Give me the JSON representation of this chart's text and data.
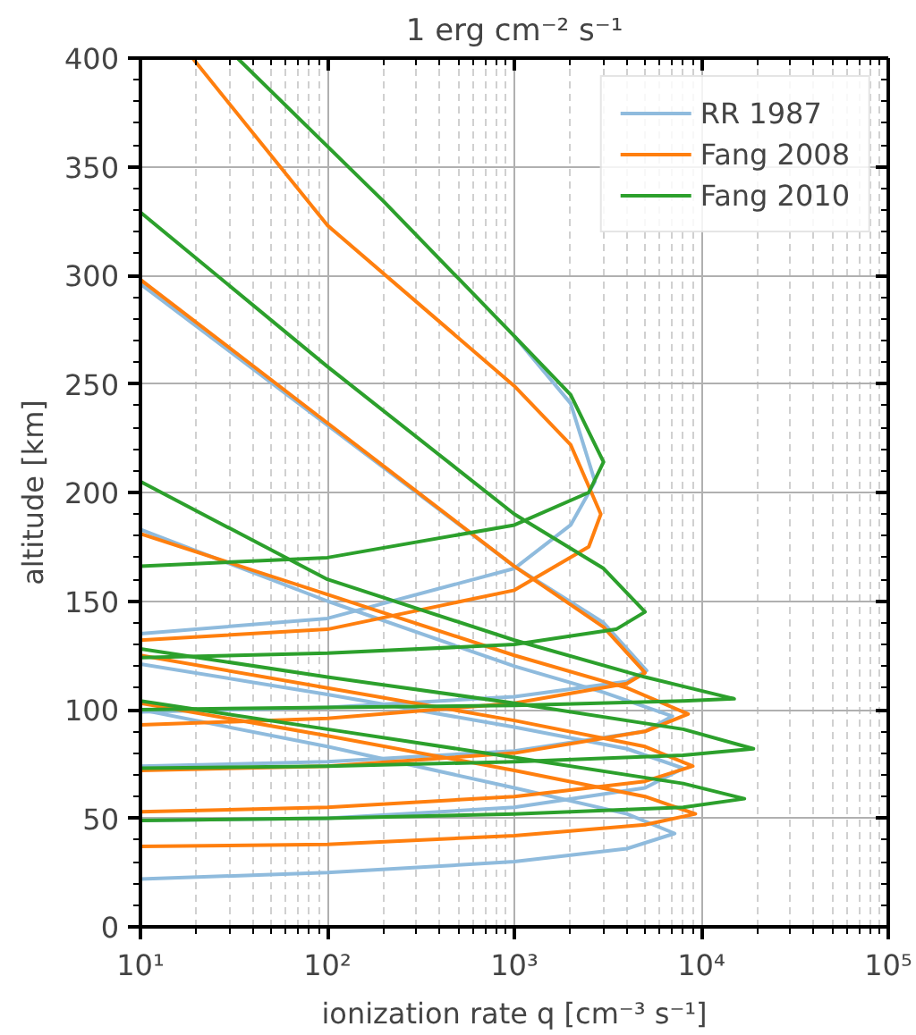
{
  "chart_data": {
    "type": "line",
    "title": "1 erg cm⁻² s⁻¹",
    "xlabel": "ionization rate q [cm⁻³ s⁻¹]",
    "ylabel": "altitude [km]",
    "log": "x",
    "grid": true,
    "legend": "top right",
    "line_style": "solid",
    "xlim": [
      10,
      100000
    ],
    "ylim": [
      0,
      400
    ],
    "xticks": [
      {
        "value": 10,
        "label": "10¹"
      },
      {
        "value": 100,
        "label": "10²"
      },
      {
        "value": 1000,
        "label": "10³"
      },
      {
        "value": 10000,
        "label": "10⁴"
      },
      {
        "value": 100000,
        "label": "10⁵"
      }
    ],
    "yticks": [
      0,
      50,
      100,
      150,
      200,
      250,
      300,
      350,
      400
    ],
    "series": [
      {
        "name": "RR 1987",
        "color": "#8fbbdd",
        "x": [
          10,
          100,
          1000,
          4000,
          7200,
          4000,
          1000,
          100,
          10
        ],
        "values": [
          22,
          25,
          30,
          36,
          43,
          52,
          64,
          83,
          100
        ]
      },
      {
        "color": "#8fbbdd",
        "x": [
          10,
          100,
          1000,
          5000,
          8000,
          4000,
          1000,
          100,
          10
        ],
        "values": [
          49,
          50,
          55,
          64,
          73,
          82,
          92,
          107,
          121
        ]
      },
      {
        "color": "#8fbbdd",
        "x": [
          10,
          100,
          1000,
          5000,
          7000,
          3000,
          1000,
          100,
          10
        ],
        "values": [
          74,
          76,
          81,
          90,
          97,
          108,
          120,
          150,
          183
        ]
      },
      {
        "color": "#8fbbdd",
        "x": [
          10,
          100,
          1000,
          4000,
          5100,
          3000,
          1000,
          100,
          10
        ],
        "values": [
          99,
          101,
          106,
          113,
          118,
          140,
          166,
          231,
          296
        ]
      },
      {
        "color": "#8fbbdd",
        "x": [
          10,
          100,
          1000,
          2000,
          2700,
          2000,
          1000
        ],
        "values": [
          135,
          142,
          165,
          185,
          205,
          241,
          272
        ]
      },
      {
        "name": "Fang 2008",
        "color": "#ff7f0e",
        "x": [
          10,
          100,
          1000,
          5000,
          9300,
          5000,
          1000,
          100,
          10
        ],
        "values": [
          37,
          38,
          42,
          47,
          52,
          60,
          72,
          88,
          103
        ]
      },
      {
        "color": "#ff7f0e",
        "x": [
          10,
          100,
          1000,
          5000,
          9000,
          5000,
          1000,
          100,
          10
        ],
        "values": [
          53,
          55,
          60,
          67,
          74,
          83,
          95,
          110,
          125
        ]
      },
      {
        "color": "#ff7f0e",
        "x": [
          10,
          100,
          1000,
          5000,
          8500,
          4000,
          1000,
          100,
          10
        ],
        "values": [
          72,
          74,
          80,
          90,
          98,
          110,
          125,
          153,
          181
        ]
      },
      {
        "color": "#ff7f0e",
        "x": [
          10,
          100,
          1000,
          4000,
          5000,
          3000,
          1000,
          100,
          10
        ],
        "values": [
          93,
          96,
          103,
          112,
          117,
          138,
          166,
          232,
          298
        ]
      },
      {
        "color": "#ff7f0e",
        "x": [
          10,
          100,
          1000,
          2500,
          2900,
          2000,
          1000,
          100,
          19
        ],
        "values": [
          132,
          137,
          155,
          175,
          190,
          222,
          249,
          323,
          400
        ]
      },
      {
        "name": "Fang 2010",
        "color": "#2ca02c",
        "x": [
          10,
          100,
          1000,
          8000,
          17000,
          8000,
          1000,
          100,
          10
        ],
        "values": [
          49,
          50,
          52,
          55,
          59,
          66,
          78,
          91,
          104
        ]
      },
      {
        "color": "#2ca02c",
        "x": [
          10,
          100,
          1000,
          8000,
          19000,
          8000,
          1000,
          100,
          10
        ],
        "values": [
          73,
          74,
          76,
          79,
          82,
          91,
          103,
          115,
          128
        ]
      },
      {
        "color": "#2ca02c",
        "x": [
          10,
          100,
          1000,
          8000,
          15000,
          5000,
          1000,
          100,
          10
        ],
        "values": [
          100,
          101,
          102,
          104,
          105,
          115,
          132,
          160,
          205
        ]
      },
      {
        "color": "#2ca02c",
        "x": [
          10,
          100,
          1000,
          3500,
          5000,
          3000,
          1000,
          100,
          10
        ],
        "values": [
          124,
          126,
          130,
          137,
          145,
          165,
          190,
          258,
          329
        ]
      },
      {
        "color": "#2ca02c",
        "x": [
          10,
          100,
          1000,
          2500,
          3000,
          2000,
          1000,
          200,
          33
        ],
        "values": [
          166,
          170,
          185,
          200,
          214,
          245,
          272,
          334,
          400
        ]
      }
    ]
  }
}
